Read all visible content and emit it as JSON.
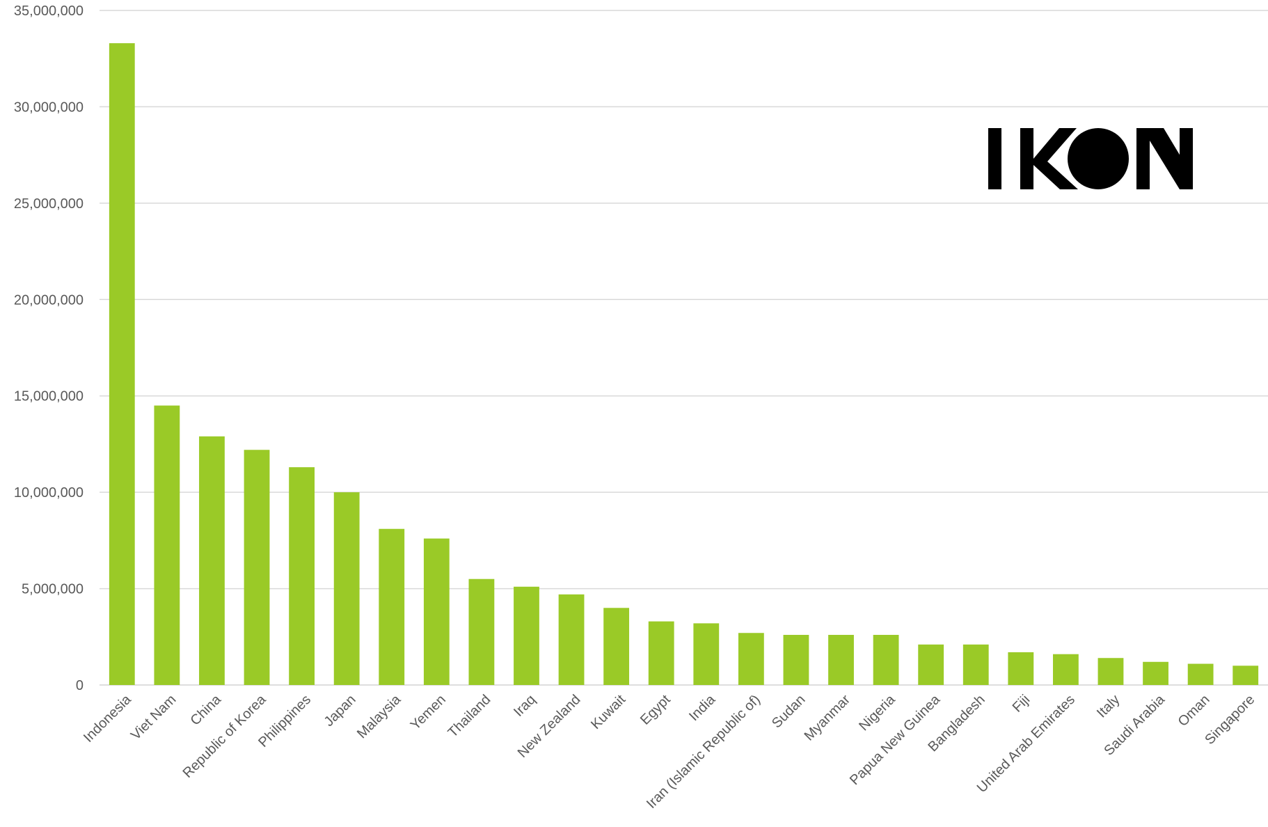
{
  "chart_data": {
    "type": "bar",
    "title": "",
    "xlabel": "",
    "ylabel": "",
    "ylim": [
      0,
      35000000
    ],
    "yticks": [
      0,
      5000000,
      10000000,
      15000000,
      20000000,
      25000000,
      30000000,
      35000000
    ],
    "ytick_labels": [
      "0",
      "5,000,000",
      "10,000,000",
      "15,000,000",
      "20,000,000",
      "25,000,000",
      "30,000,000",
      "35,000,000"
    ],
    "grid": true,
    "bar_color": "#9ACA27",
    "categories": [
      "Indonesia",
      "Viet Nam",
      "China",
      "Republic of Korea",
      "Philippines",
      "Japan",
      "Malaysia",
      "Yemen",
      "Thailand",
      "Iraq",
      "New Zealand",
      "Kuwait",
      "Egypt",
      "India",
      "Iran (Islamic Republic of)",
      "Sudan",
      "Myanmar",
      "Nigeria",
      "Papua New Guinea",
      "Bangladesh",
      "Fiji",
      "United Arab Emirates",
      "Italy",
      "Saudi Arabia",
      "Oman",
      "Singapore"
    ],
    "values": [
      33300000,
      14500000,
      12900000,
      12200000,
      11300000,
      10000000,
      8100000,
      7600000,
      5500000,
      5100000,
      4700000,
      4000000,
      3300000,
      3200000,
      2700000,
      2600000,
      2600000,
      2600000,
      2100000,
      2100000,
      1700000,
      1600000,
      1400000,
      1200000,
      1100000,
      1000000
    ]
  },
  "logo": {
    "text": "IKON",
    "icon": "ikon-logo"
  }
}
